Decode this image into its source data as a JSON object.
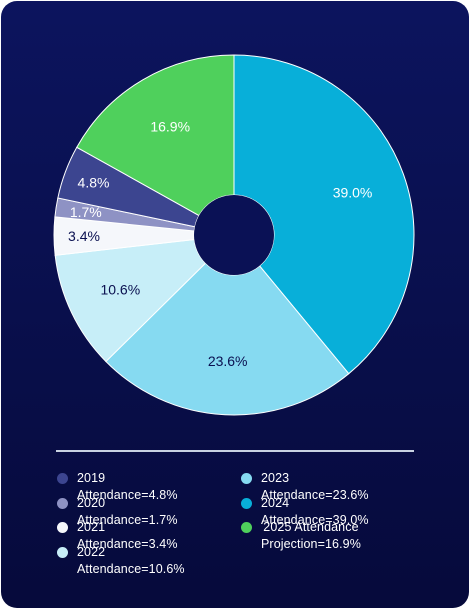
{
  "chart_data": {
    "type": "pie",
    "donut": true,
    "legend_position": "bottom",
    "slices": [
      {
        "label": "2019 Attendance=4.8%",
        "value": 4.8,
        "data_label": "4.8%",
        "color": "#3c4590",
        "label_color": "#ffffff"
      },
      {
        "label": "2020 Attendance=1.7%",
        "value": 1.7,
        "data_label": "1.7%",
        "color": "#8e92c4",
        "label_color": "#ffffff"
      },
      {
        "label": "2021 Attendance=3.4%",
        "value": 3.4,
        "data_label": "3.4%",
        "color": "#f5f7fb",
        "label_color": "#0a1050"
      },
      {
        "label": "2022 Attendance=10.6%",
        "value": 10.6,
        "data_label": "10.6%",
        "color": "#c7eef8",
        "label_color": "#0a1050"
      },
      {
        "label": "2023 Attendance=23.6%",
        "value": 23.6,
        "data_label": "23.6%",
        "color": "#86daf1",
        "label_color": "#0a1050"
      },
      {
        "label": "2024 Attendance=39.0%",
        "value": 39.0,
        "data_label": "39.0%",
        "color": "#08afd9",
        "label_color": "#ffffff"
      },
      {
        "label": "2025 Attendance Projection=16.9%",
        "value": 16.9,
        "data_label": "16.9%",
        "color": "#4fd05c",
        "label_color": "#ffffff"
      }
    ]
  },
  "legend": {
    "items": [
      {
        "text": "2019 Attendance=4.8%",
        "color": "#3c4590"
      },
      {
        "text": "2020 Attendance=1.7%",
        "color": "#8e92c4"
      },
      {
        "text": "2021 Attendance=3.4%",
        "color": "#f5f7fb"
      },
      {
        "text": "2022 Attendance=10.6%",
        "color": "#c7eef8"
      },
      {
        "text": "2023 Attendance=23.6%",
        "color": "#86daf1"
      },
      {
        "text": "2024 Attendance=39.0%",
        "color": "#08afd9"
      },
      {
        "text": "2025 Attendance\nProjection=16.9%",
        "color": "#4fd05c"
      }
    ]
  }
}
